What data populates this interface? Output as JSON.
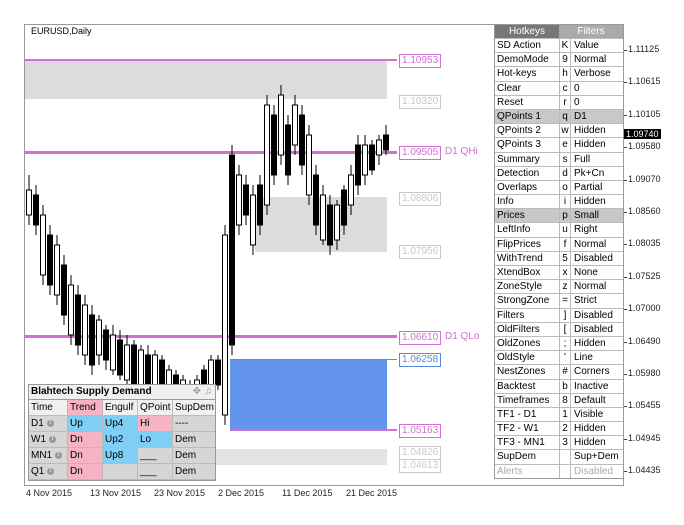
{
  "symbol": "EURUSD,Daily",
  "colors": {
    "magenta": "#d070d0",
    "zone_gray": "#dcdcdc",
    "zone_blue": "#6495ed",
    "label_gray": "#c8c8c8",
    "current": "#000000"
  },
  "price_labels": {
    "p1": "1.10953",
    "p2": "1.10320",
    "p3": "1.09505",
    "p4": "1.08806",
    "p5": "1.07956",
    "p6": "1.06610",
    "p7": "1.06258",
    "p8": "1.05163",
    "p9": "1.04826",
    "p10": "1.04613"
  },
  "zone_tags": {
    "qhi": "D1 QHi",
    "qlo": "D1 QLo"
  },
  "price_axis": [
    "1.11125",
    "1.10615",
    "1.10105",
    "1.09580",
    "1.09070",
    "1.08560",
    "1.08035",
    "1.07525",
    "1.07000",
    "1.06490",
    "1.05980",
    "1.05455",
    "1.04945",
    "1.04435"
  ],
  "current_price": "1.09740",
  "time_axis": [
    "4 Nov 2015",
    "13 Nov 2015",
    "23 Nov 2015",
    "2 Dec 2015",
    "11 Dec 2015",
    "21 Dec 2015"
  ],
  "hotkeys": {
    "tabs": [
      "Hotkeys",
      "Filters"
    ],
    "header": [
      "SD Action",
      "K",
      "Value"
    ],
    "rows": [
      [
        "DemoMode",
        "9",
        "Normal"
      ],
      [
        "Hot-keys",
        "h",
        "Verbose"
      ],
      [
        "Clear",
        "c",
        "0"
      ],
      [
        "Reset",
        "r",
        "0"
      ],
      [
        "QPoints 1",
        "q",
        "D1"
      ],
      [
        "QPoints 2",
        "w",
        "Hidden"
      ],
      [
        "QPoints 3",
        "e",
        "Hidden"
      ],
      [
        "Summary",
        "s",
        "Full"
      ],
      [
        "Detection",
        "d",
        "Pk+Cn"
      ],
      [
        "Overlaps",
        "o",
        "Partial"
      ],
      [
        "Info",
        "i",
        "Hidden"
      ],
      [
        "Prices",
        "p",
        "Small"
      ],
      [
        "LeftInfo",
        "u",
        "Right"
      ],
      [
        "FlipPrices",
        "f",
        "Normal"
      ],
      [
        "WithTrend",
        "5",
        "Disabled"
      ],
      [
        "XtendBox",
        "x",
        "None"
      ],
      [
        "ZoneStyle",
        "z",
        "Normal"
      ],
      [
        "StrongZone",
        "=",
        "Strict"
      ],
      [
        "Filters",
        "]",
        "Disabled"
      ],
      [
        "OldFilters",
        "[",
        "Disabled"
      ],
      [
        "OldZones",
        ";",
        "Hidden"
      ],
      [
        "OldStyle",
        "'",
        "Line"
      ],
      [
        "NestZones",
        "#",
        "Corners"
      ],
      [
        "Backtest",
        "b",
        "Inactive"
      ],
      [
        "Timeframes",
        "8",
        "Default"
      ],
      [
        "TF1 - D1",
        "1",
        "Visible"
      ],
      [
        "TF2 - W1",
        "2",
        "Hidden"
      ],
      [
        "TF3 - MN1",
        "3",
        "Hidden"
      ],
      [
        "SupDem",
        "",
        "Sup+Dem"
      ],
      [
        "Alerts",
        "",
        "Disabled"
      ]
    ]
  },
  "sd_panel": {
    "title": "Blahtech Supply Demand",
    "headers": [
      "Time",
      "Trend",
      "Engulf",
      "QPoint",
      "SupDem"
    ],
    "rows": [
      {
        "time": "D1",
        "trend": "Up",
        "engulf": "Up4",
        "qpoint": "Hi",
        "supdem": "----"
      },
      {
        "time": "W1",
        "trend": "Dn",
        "engulf": "Up2",
        "qpoint": "Lo",
        "supdem": "Dem"
      },
      {
        "time": "MN1",
        "trend": "Dn",
        "engulf": "Up8",
        "qpoint": "___",
        "supdem": "Dem"
      },
      {
        "time": "Q1",
        "trend": "Dn",
        "engulf": "",
        "qpoint": "___",
        "supdem": "Dem"
      }
    ]
  }
}
